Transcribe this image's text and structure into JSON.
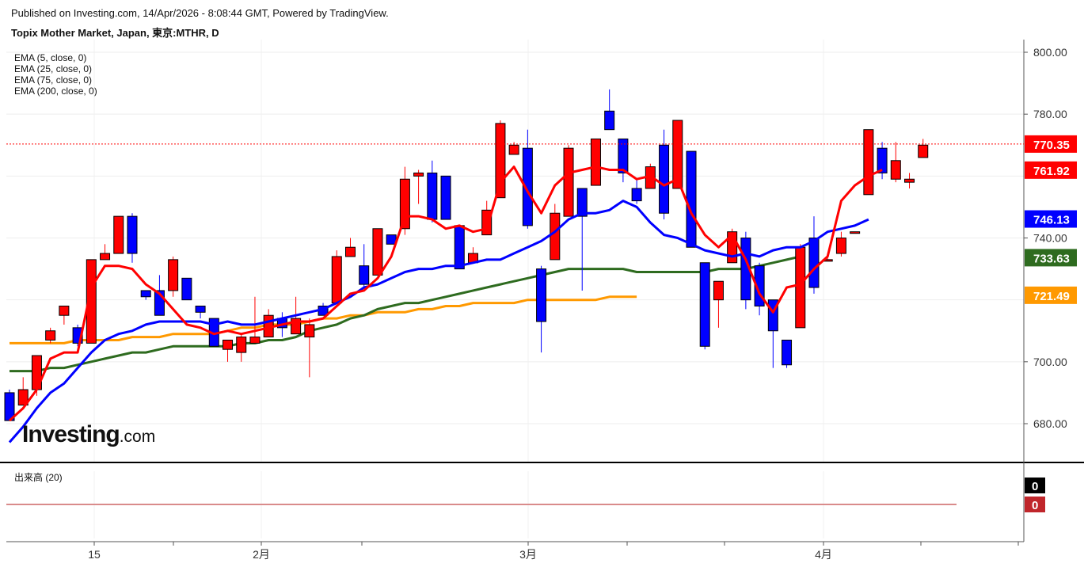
{
  "header": {
    "published": "Published on Investing.com, 14/Apr/2026 - 8:08:44 GMT, Powered by TradingView.",
    "symbol": "Topix Mother Market, Japan, 東京:MTHR, D"
  },
  "legend": [
    "EMA (5, close, 0)",
    "EMA (25, close, 0)",
    "EMA (75, close, 0)",
    "EMA (200, close, 0)"
  ],
  "logo": {
    "main": "Investing",
    "suffix": ".com"
  },
  "volume": {
    "label": "出来高 (20)",
    "badges": [
      {
        "text": "0",
        "color": "#000000"
      },
      {
        "text": "0",
        "color": "#c0262b"
      }
    ]
  },
  "colors": {
    "up": "#ff0000",
    "down": "#0000ff",
    "ema5": "#ff0000",
    "ema25": "#0000ff",
    "ema75": "#2e6b1f",
    "ema200": "#ff9900"
  },
  "chart_data": {
    "type": "candlestick",
    "ylim": [
      670,
      802
    ],
    "y_ticks": [
      "800.00",
      "780.00",
      "740.00",
      "700.00",
      "680.00"
    ],
    "x_ticks": [
      "15",
      "2月",
      "3月",
      "4月"
    ],
    "price_badges": [
      {
        "value": 770.35,
        "text": "770.35",
        "bg": "#ff0000",
        "fg": "#ffffff"
      },
      {
        "value": 761.92,
        "text": "761.92",
        "bg": "#ff0000",
        "fg": "#ffffff"
      },
      {
        "value": 746.13,
        "text": "746.13",
        "bg": "#0000ff",
        "fg": "#ffffff"
      },
      {
        "value": 733.63,
        "text": "733.63",
        "bg": "#2e6b1f",
        "fg": "#ffffff"
      },
      {
        "value": 721.49,
        "text": "721.49",
        "bg": "#ff9900",
        "fg": "#ffffff"
      }
    ],
    "last_price": 770.35,
    "candles": [
      [
        690,
        681,
        691,
        681
      ],
      [
        686,
        691,
        695,
        686
      ],
      [
        691,
        702,
        702,
        689
      ],
      [
        707,
        710,
        711,
        706
      ],
      [
        715,
        718,
        718,
        712
      ],
      [
        711,
        706,
        712,
        705
      ],
      [
        706,
        733,
        733,
        706
      ],
      [
        733,
        735,
        738,
        733
      ],
      [
        735,
        747,
        747,
        735
      ],
      [
        747,
        735,
        748,
        732
      ],
      [
        723,
        721,
        723,
        720
      ],
      [
        723,
        715,
        728,
        715
      ],
      [
        723,
        733,
        734,
        721
      ],
      [
        727,
        720,
        727,
        720
      ],
      [
        718,
        716,
        716,
        714
      ],
      [
        714,
        705,
        714,
        705
      ],
      [
        704,
        707,
        707,
        700
      ],
      [
        703,
        708,
        709,
        700
      ],
      [
        706,
        708,
        721,
        706
      ],
      [
        708,
        715,
        717,
        708
      ],
      [
        714,
        711,
        716,
        708
      ],
      [
        709,
        714,
        721,
        709
      ],
      [
        708,
        712,
        714,
        695
      ],
      [
        718,
        715,
        719,
        715
      ],
      [
        719,
        734,
        736,
        719
      ],
      [
        734,
        737,
        740,
        734
      ],
      [
        731,
        725,
        738,
        724
      ],
      [
        728,
        743,
        743,
        728
      ],
      [
        741,
        738,
        741,
        738
      ],
      [
        743,
        759,
        763,
        741
      ],
      [
        760,
        761,
        762,
        751
      ],
      [
        761,
        746,
        765,
        745
      ],
      [
        760,
        746,
        760,
        746
      ],
      [
        744,
        730,
        744,
        730
      ],
      [
        732,
        735,
        737,
        732
      ],
      [
        741,
        749,
        752,
        741
      ],
      [
        753,
        777,
        778,
        753
      ],
      [
        767,
        770,
        771,
        767
      ],
      [
        769,
        744,
        775,
        743
      ],
      [
        730,
        713,
        731,
        703
      ],
      [
        733,
        748,
        751,
        733
      ],
      [
        747,
        769,
        770,
        747
      ],
      [
        756,
        747,
        756,
        723
      ],
      [
        757,
        772,
        772,
        757
      ],
      [
        781,
        775,
        788,
        775
      ],
      [
        772,
        761,
        772,
        758
      ],
      [
        756,
        752,
        759,
        751
      ],
      [
        756,
        763,
        764,
        756
      ],
      [
        770,
        748,
        775,
        746
      ],
      [
        756,
        778,
        778,
        756
      ],
      [
        768,
        737,
        768,
        743
      ],
      [
        732,
        705,
        732,
        704
      ],
      [
        720,
        726,
        726,
        711
      ],
      [
        732,
        742,
        743,
        732
      ],
      [
        740,
        720,
        742,
        717
      ],
      [
        731,
        718,
        732,
        715
      ],
      [
        720,
        710,
        720,
        698
      ],
      [
        707,
        699,
        707,
        698
      ],
      [
        711,
        737,
        738,
        711
      ],
      [
        740,
        724,
        747,
        722
      ],
      [
        733,
        733,
        734,
        733
      ],
      [
        735,
        740,
        742,
        734
      ],
      [
        742,
        742,
        742,
        742
      ],
      [
        754,
        775,
        775,
        754
      ],
      [
        769,
        761,
        771,
        759
      ],
      [
        759,
        765,
        771,
        758
      ],
      [
        758,
        759,
        761,
        756
      ],
      [
        766,
        770,
        772,
        766
      ]
    ],
    "ema5": [
      681,
      685,
      691,
      701,
      703,
      703,
      724,
      731,
      731,
      730,
      725,
      722,
      717,
      712,
      711,
      709,
      710,
      709,
      710,
      711,
      712,
      713,
      713,
      714,
      718,
      722,
      723,
      727,
      734,
      747,
      747,
      746,
      743,
      744,
      742,
      743,
      758,
      763,
      755,
      748,
      757,
      761,
      762,
      763,
      762,
      762,
      759,
      760,
      757,
      759,
      748,
      741,
      737,
      741,
      733,
      722,
      716,
      724,
      725,
      730,
      734,
      752,
      757,
      760,
      762
    ],
    "ema25": [
      674,
      679,
      685,
      690,
      693,
      698,
      703,
      707,
      709,
      710,
      712,
      713,
      713,
      713,
      713,
      712,
      713,
      712,
      712,
      713,
      714,
      715,
      716,
      717,
      719,
      721,
      724,
      725,
      727,
      729,
      730,
      730,
      731,
      731,
      732,
      733,
      733,
      735,
      737,
      739,
      742,
      746,
      748,
      748,
      749,
      752,
      750,
      745,
      741,
      740,
      738,
      736,
      735,
      734,
      735,
      734,
      736,
      737,
      737,
      739,
      742,
      743,
      744,
      746
    ],
    "ema75": [
      697,
      697,
      697,
      698,
      698,
      699,
      700,
      701,
      702,
      703,
      703,
      704,
      705,
      705,
      705,
      705,
      705,
      706,
      706,
      707,
      707,
      708,
      710,
      711,
      712,
      714,
      715,
      717,
      718,
      719,
      719,
      720,
      721,
      722,
      723,
      724,
      725,
      726,
      727,
      728,
      729,
      730,
      730,
      730,
      730,
      730,
      729,
      729,
      729,
      729,
      729,
      729,
      730,
      730,
      730,
      731,
      732,
      733,
      734
    ],
    "ema200": [
      706,
      706,
      706,
      706,
      706,
      707,
      707,
      707,
      707,
      708,
      708,
      708,
      709,
      709,
      709,
      709,
      710,
      711,
      711,
      712,
      712,
      712,
      713,
      714,
      714,
      715,
      715,
      716,
      716,
      716,
      717,
      717,
      718,
      718,
      719,
      719,
      719,
      719,
      720,
      720,
      720,
      720,
      720,
      720,
      721,
      721,
      721
    ]
  }
}
